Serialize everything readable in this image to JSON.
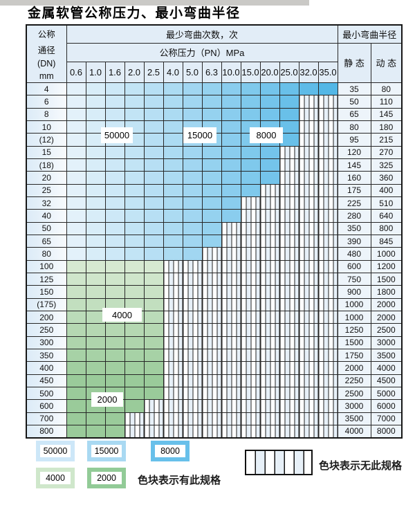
{
  "title": "金属软管公称压力、最小弯曲半径",
  "table": {
    "corner_lines": [
      "公称",
      "通径",
      "(DN)",
      "mm"
    ],
    "bend_times_header": "最少弯曲次数，次",
    "pressure_header": "公称压力（PN）MPa",
    "radius_header": "最小弯曲半径",
    "static_header": "静 态",
    "dynamic_header": "动 态",
    "pressures": [
      "0.6",
      "1.0",
      "1.6",
      "2.0",
      "2.5",
      "4.0",
      "5.0",
      "6.3",
      "10.0",
      "15.0",
      "20.0",
      "25.0",
      "32.0",
      "35.0"
    ],
    "rows": [
      {
        "dn": "4",
        "zone": "blue",
        "colored": 14,
        "static": "35",
        "dynamic": "80"
      },
      {
        "dn": "6",
        "zone": "blue",
        "colored": 12,
        "static": "50",
        "dynamic": "110"
      },
      {
        "dn": "8",
        "zone": "blue",
        "colored": 12,
        "static": "65",
        "dynamic": "145"
      },
      {
        "dn": "10",
        "zone": "blue",
        "colored": 12,
        "static": "80",
        "dynamic": "180"
      },
      {
        "dn": "(12)",
        "zone": "blue",
        "colored": 12,
        "static": "95",
        "dynamic": "215"
      },
      {
        "dn": "15",
        "zone": "blue",
        "colored": 11,
        "static": "120",
        "dynamic": "270"
      },
      {
        "dn": "(18)",
        "zone": "blue",
        "colored": 11,
        "static": "145",
        "dynamic": "325"
      },
      {
        "dn": "20",
        "zone": "blue",
        "colored": 11,
        "static": "160",
        "dynamic": "360"
      },
      {
        "dn": "25",
        "zone": "blue",
        "colored": 10,
        "static": "175",
        "dynamic": "400"
      },
      {
        "dn": "32",
        "zone": "blue",
        "colored": 9,
        "static": "225",
        "dynamic": "510"
      },
      {
        "dn": "40",
        "zone": "blue",
        "colored": 9,
        "static": "280",
        "dynamic": "640"
      },
      {
        "dn": "50",
        "zone": "blue",
        "colored": 8,
        "static": "350",
        "dynamic": "800"
      },
      {
        "dn": "65",
        "zone": "blue",
        "colored": 8,
        "static": "390",
        "dynamic": "845"
      },
      {
        "dn": "80",
        "zone": "blue",
        "colored": 7,
        "static": "480",
        "dynamic": "1000"
      },
      {
        "dn": "100",
        "zone": "green",
        "colored": 5,
        "static": "600",
        "dynamic": "1200"
      },
      {
        "dn": "125",
        "zone": "green",
        "colored": 5,
        "static": "750",
        "dynamic": "1500"
      },
      {
        "dn": "150",
        "zone": "green",
        "colored": 5,
        "static": "900",
        "dynamic": "1800"
      },
      {
        "dn": "(175)",
        "zone": "green",
        "colored": 5,
        "static": "1000",
        "dynamic": "2000"
      },
      {
        "dn": "200",
        "zone": "green",
        "colored": 5,
        "static": "1000",
        "dynamic": "2000"
      },
      {
        "dn": "250",
        "zone": "green",
        "colored": 5,
        "static": "1250",
        "dynamic": "2500"
      },
      {
        "dn": "300",
        "zone": "green",
        "colored": 5,
        "static": "1500",
        "dynamic": "3000"
      },
      {
        "dn": "350",
        "zone": "green",
        "colored": 5,
        "static": "1750",
        "dynamic": "3500"
      },
      {
        "dn": "400",
        "zone": "green",
        "colored": 5,
        "static": "2000",
        "dynamic": "4000"
      },
      {
        "dn": "450",
        "zone": "green",
        "colored": 5,
        "static": "2250",
        "dynamic": "4500"
      },
      {
        "dn": "500",
        "zone": "green",
        "colored": 5,
        "static": "2500",
        "dynamic": "5000"
      },
      {
        "dn": "600",
        "zone": "green",
        "colored": 4,
        "static": "3000",
        "dynamic": "6000"
      },
      {
        "dn": "700",
        "zone": "green",
        "colored": 3,
        "static": "3500",
        "dynamic": "7000"
      },
      {
        "dn": "800",
        "zone": "green",
        "colored": 3,
        "static": "4000",
        "dynamic": "8000"
      }
    ]
  },
  "zone_labels": [
    {
      "text": "50000"
    },
    {
      "text": "15000"
    },
    {
      "text": "8000"
    },
    {
      "text": "4000"
    },
    {
      "text": "2000"
    }
  ],
  "legend": {
    "blocks": [
      {
        "label": "50000",
        "color": "#cde7f8"
      },
      {
        "label": "15000",
        "color": "#a9d9f2"
      },
      {
        "label": "8000",
        "color": "#68c0ea"
      },
      {
        "label": "4000",
        "color": "#cfe7cb"
      },
      {
        "label": "2000",
        "color": "#92cb97"
      }
    ],
    "has_spec_text": "色块表示有此规格",
    "no_spec_text": "色块表示无此规格"
  },
  "colors": {
    "blue_light": "#e3f1fa",
    "blue_dark": "#53b7e6",
    "green_light": "#d6e9d1",
    "green_dark": "#9acb9a",
    "grid": "#262626"
  }
}
